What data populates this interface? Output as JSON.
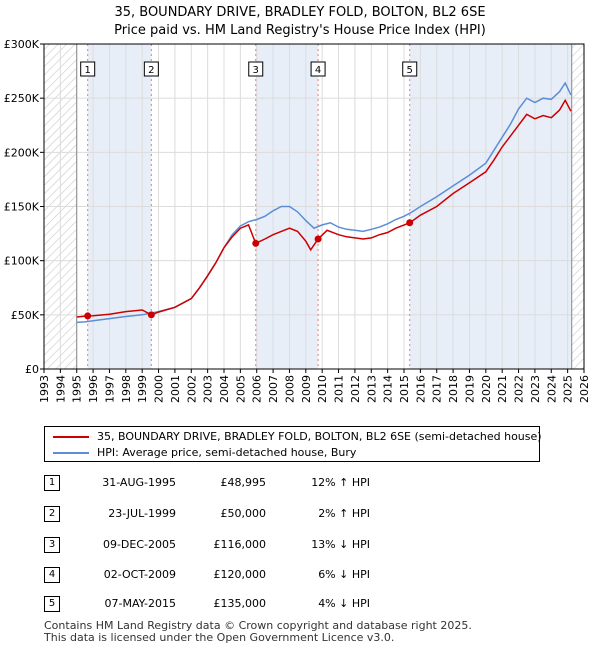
{
  "title_line1": "35, BOUNDARY DRIVE, BRADLEY FOLD, BOLTON, BL2 6SE",
  "title_line2": "Price paid vs. HM Land Registry's House Price Index (HPI)",
  "chart_data": {
    "type": "line",
    "xlim": [
      1993,
      2026
    ],
    "ylim": [
      0,
      300000
    ],
    "y_ticks": [
      0,
      50000,
      100000,
      150000,
      200000,
      250000,
      300000
    ],
    "y_tick_labels": [
      "£0",
      "£50K",
      "£100K",
      "£150K",
      "£200K",
      "£250K",
      "£300K"
    ],
    "x_tick_labels": [
      "1993",
      "1994",
      "1995",
      "1996",
      "1997",
      "1998",
      "1999",
      "2000",
      "2001",
      "2002",
      "2003",
      "2004",
      "2005",
      "2006",
      "2007",
      "2008",
      "2009",
      "2010",
      "2011",
      "2012",
      "2013",
      "2014",
      "2015",
      "2016",
      "2017",
      "2018",
      "2019",
      "2020",
      "2021",
      "2022",
      "2023",
      "2024",
      "2025",
      "2026"
    ],
    "data_start": 1995.0,
    "data_end": 2025.25,
    "series": [
      {
        "name": "35, BOUNDARY DRIVE, BRADLEY FOLD, BOLTON, BL2 6SE (semi-detached house)",
        "color": "#cc0000",
        "points": [
          [
            1995.0,
            48000
          ],
          [
            1995.67,
            48995
          ],
          [
            1996.0,
            49200
          ],
          [
            1997.0,
            50500
          ],
          [
            1998.0,
            53000
          ],
          [
            1999.0,
            54500
          ],
          [
            1999.56,
            50000
          ],
          [
            2000.0,
            52500
          ],
          [
            2001.0,
            57000
          ],
          [
            2002.0,
            65000
          ],
          [
            2002.5,
            75000
          ],
          [
            2003.0,
            86000
          ],
          [
            2003.5,
            98000
          ],
          [
            2004.0,
            112000
          ],
          [
            2004.5,
            122000
          ],
          [
            2005.0,
            130000
          ],
          [
            2005.5,
            133000
          ],
          [
            2005.94,
            116000
          ],
          [
            2006.5,
            120000
          ],
          [
            2007.0,
            124000
          ],
          [
            2007.5,
            127000
          ],
          [
            2008.0,
            130000
          ],
          [
            2008.5,
            127000
          ],
          [
            2009.0,
            118000
          ],
          [
            2009.3,
            110000
          ],
          [
            2009.75,
            120000
          ],
          [
            2010.3,
            128000
          ],
          [
            2011.0,
            124000
          ],
          [
            2011.5,
            122000
          ],
          [
            2012.0,
            121000
          ],
          [
            2012.5,
            120000
          ],
          [
            2013.0,
            121000
          ],
          [
            2013.5,
            124000
          ],
          [
            2014.0,
            126000
          ],
          [
            2014.5,
            130000
          ],
          [
            2015.35,
            135000
          ],
          [
            2016.0,
            142000
          ],
          [
            2017.0,
            150000
          ],
          [
            2018.0,
            162000
          ],
          [
            2019.0,
            172000
          ],
          [
            2020.0,
            182000
          ],
          [
            2020.5,
            193000
          ],
          [
            2021.0,
            205000
          ],
          [
            2021.5,
            215000
          ],
          [
            2022.0,
            225000
          ],
          [
            2022.5,
            235000
          ],
          [
            2023.0,
            231000
          ],
          [
            2023.5,
            234000
          ],
          [
            2024.0,
            232000
          ],
          [
            2024.5,
            239000
          ],
          [
            2024.85,
            248000
          ],
          [
            2025.2,
            238000
          ]
        ]
      },
      {
        "name": "HPI: Average price, semi-detached house, Bury",
        "color": "#5b8ed6",
        "points": [
          [
            1995.0,
            43000
          ],
          [
            1995.5,
            43500
          ],
          [
            1996.0,
            44500
          ],
          [
            1997.0,
            46500
          ],
          [
            1998.0,
            48500
          ],
          [
            1999.0,
            50000
          ],
          [
            2000.0,
            53000
          ],
          [
            2001.0,
            57000
          ],
          [
            2002.0,
            65000
          ],
          [
            2002.5,
            75000
          ],
          [
            2003.0,
            86000
          ],
          [
            2003.5,
            98000
          ],
          [
            2004.0,
            112000
          ],
          [
            2004.5,
            124000
          ],
          [
            2005.0,
            132000
          ],
          [
            2005.5,
            136000
          ],
          [
            2006.0,
            138000
          ],
          [
            2006.5,
            141000
          ],
          [
            2007.0,
            146000
          ],
          [
            2007.5,
            150000
          ],
          [
            2008.0,
            150000
          ],
          [
            2008.5,
            145000
          ],
          [
            2009.0,
            137000
          ],
          [
            2009.5,
            130000
          ],
          [
            2010.0,
            133000
          ],
          [
            2010.5,
            135000
          ],
          [
            2011.0,
            131000
          ],
          [
            2011.5,
            129000
          ],
          [
            2012.0,
            128000
          ],
          [
            2012.5,
            127000
          ],
          [
            2013.0,
            129000
          ],
          [
            2013.5,
            131000
          ],
          [
            2014.0,
            134000
          ],
          [
            2014.5,
            138000
          ],
          [
            2015.0,
            141000
          ],
          [
            2015.5,
            145000
          ],
          [
            2016.0,
            150000
          ],
          [
            2017.0,
            159000
          ],
          [
            2018.0,
            169000
          ],
          [
            2019.0,
            179000
          ],
          [
            2020.0,
            190000
          ],
          [
            2020.5,
            202000
          ],
          [
            2021.0,
            214000
          ],
          [
            2021.5,
            226000
          ],
          [
            2022.0,
            240000
          ],
          [
            2022.5,
            250000
          ],
          [
            2023.0,
            246000
          ],
          [
            2023.5,
            250000
          ],
          [
            2024.0,
            249000
          ],
          [
            2024.5,
            256000
          ],
          [
            2024.85,
            264000
          ],
          [
            2025.2,
            253000
          ]
        ]
      }
    ],
    "sales": [
      {
        "label": "1",
        "year": 1995.67,
        "price": 48995
      },
      {
        "label": "2",
        "year": 1999.56,
        "price": 50000
      },
      {
        "label": "3",
        "year": 2005.94,
        "price": 116000
      },
      {
        "label": "4",
        "year": 2009.75,
        "price": 120000
      },
      {
        "label": "5",
        "year": 2015.35,
        "price": 135000
      }
    ]
  },
  "legend": {
    "items": [
      {
        "label": "35, BOUNDARY DRIVE, BRADLEY FOLD, BOLTON, BL2 6SE (semi-detached house)",
        "color": "#cc0000"
      },
      {
        "label": "HPI: Average price, semi-detached house, Bury",
        "color": "#5b8ed6"
      }
    ]
  },
  "transactions": [
    {
      "num": "1",
      "date": "31-AUG-1995",
      "price": "£48,995",
      "hpi": "12% ↑ HPI"
    },
    {
      "num": "2",
      "date": "23-JUL-1999",
      "price": "£50,000",
      "hpi": "2% ↑ HPI"
    },
    {
      "num": "3",
      "date": "09-DEC-2005",
      "price": "£116,000",
      "hpi": "13% ↓ HPI"
    },
    {
      "num": "4",
      "date": "02-OCT-2009",
      "price": "£120,000",
      "hpi": "6% ↓ HPI"
    },
    {
      "num": "5",
      "date": "07-MAY-2015",
      "price": "£135,000",
      "hpi": "4% ↓ HPI"
    }
  ],
  "footer": {
    "line1": "Contains HM Land Registry data © Crown copyright and database right 2025.",
    "line2": "This data is licensed under the Open Government Licence v3.0."
  }
}
